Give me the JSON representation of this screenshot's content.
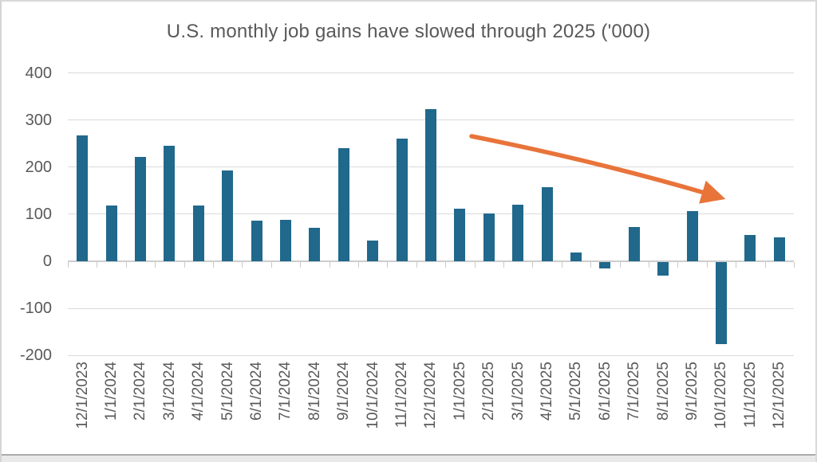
{
  "chart_data": {
    "type": "bar",
    "title": "U.S. monthly job gains have slowed through 2025 ('000)",
    "xlabel": "",
    "ylabel": "",
    "categories": [
      "12/1/2023",
      "1/1/2024",
      "2/1/2024",
      "3/1/2024",
      "4/1/2024",
      "5/1/2024",
      "6/1/2024",
      "7/1/2024",
      "8/1/2024",
      "9/1/2024",
      "10/1/2024",
      "11/1/2024",
      "12/1/2024",
      "1/1/2025",
      "2/1/2025",
      "3/1/2025",
      "4/1/2025",
      "5/1/2025",
      "6/1/2025",
      "7/1/2025",
      "8/1/2025",
      "9/1/2025",
      "10/1/2025",
      "11/1/2025",
      "12/1/2025"
    ],
    "values": [
      268,
      119,
      222,
      246,
      118,
      193,
      87,
      88,
      71,
      240,
      44,
      261,
      323,
      111,
      102,
      120,
      158,
      19,
      -13,
      72,
      -28,
      107,
      -175,
      56,
      50
    ],
    "ylim": [
      -200,
      400
    ],
    "yticks": [
      400,
      300,
      200,
      100,
      0,
      -100,
      -200
    ],
    "grid": "horizontal",
    "legend": "none",
    "bar_color": "#20688C",
    "gridline_color": "#dadada",
    "text_color": "#595959",
    "annotation": {
      "shape": "downward-trend-arrow",
      "meaning": "job gains slowing over 2025",
      "color": "#E8743A"
    }
  }
}
